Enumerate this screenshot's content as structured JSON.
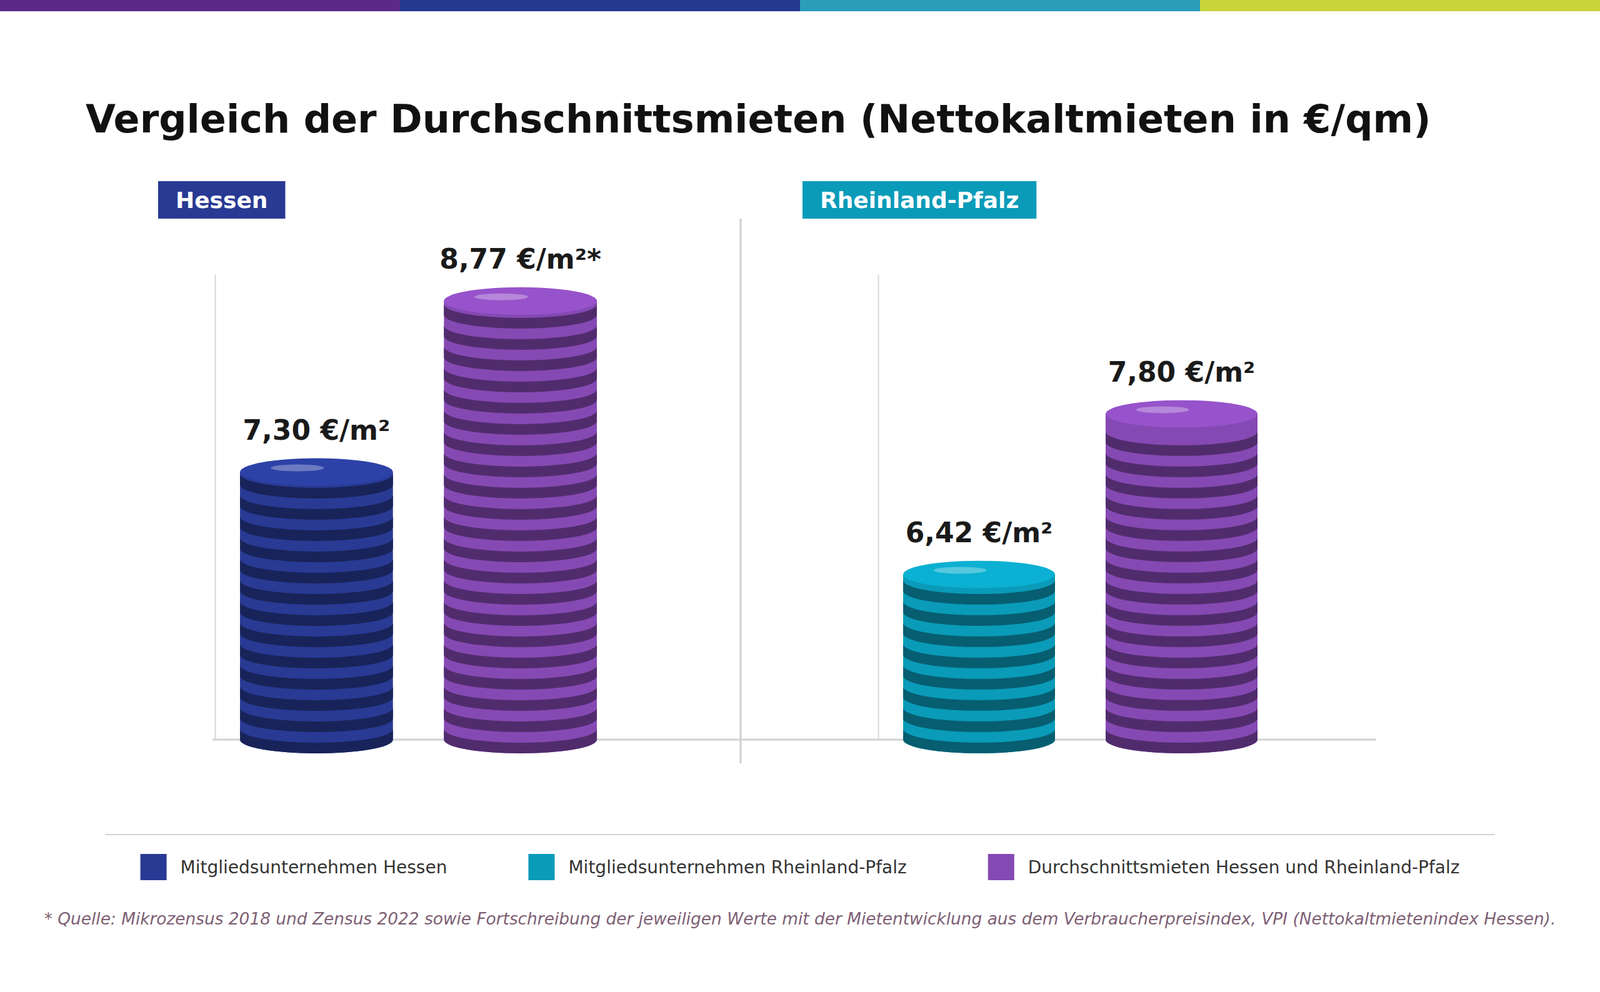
{
  "title": "Vergleich der Durchschnittsmieten (Nettokaltmieten in €/qm)",
  "footnote": "* Quelle: Mikrozensus 2018 und Zensus 2022 sowie Fortschreibung der jeweiligen Werte mit der Mietentwicklung aus dem Verbraucherpreisindex, VPI (Nettokaltmietenindex Hessen).",
  "chart_data": [
    {
      "type": "bar",
      "title": "Hessen",
      "categories": [
        null,
        null
      ],
      "series": [
        {
          "name": "Mitgliedsunternehmen Hessen",
          "color": "#283a93",
          "values": [
            7.3,
            null
          ],
          "value_labels": [
            "7,30 €/m²",
            null
          ]
        },
        {
          "name": "Durchschnittsmieten Hessen und Rheinland-Pfalz",
          "color": "#8549b3",
          "values": [
            null,
            8.77
          ],
          "value_labels": [
            null,
            "8,77 €/m²*"
          ]
        }
      ],
      "ylim": [
        5,
        9
      ],
      "grid": false,
      "legend": "bottom",
      "data_labels": true,
      "tick_labels": false
    },
    {
      "type": "bar",
      "title": "Rheinland-Pfalz",
      "categories": [
        null,
        null
      ],
      "series": [
        {
          "name": "Mitgliedsunternehmen Rheinland-Pfalz",
          "color": "#0a9bb9",
          "values": [
            6.42,
            null
          ],
          "value_labels": [
            "6,42 €/m²",
            null
          ]
        },
        {
          "name": "Durchschnittsmieten Hessen und Rheinland-Pfalz",
          "color": "#8549b3",
          "values": [
            null,
            7.8
          ],
          "value_labels": [
            null,
            "7,80 €/m²"
          ]
        }
      ],
      "ylim": [
        5,
        9
      ],
      "grid": false,
      "legend": "bottom",
      "data_labels": true,
      "tick_labels": false
    }
  ]
}
